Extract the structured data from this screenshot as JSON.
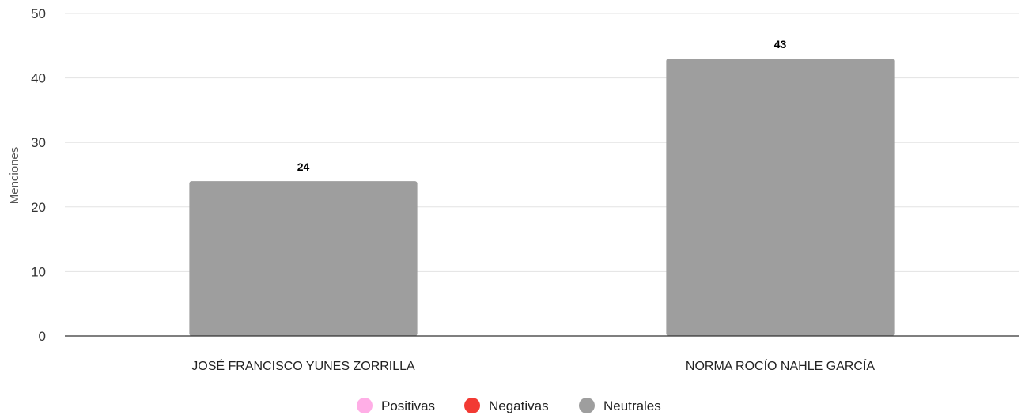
{
  "chart_data": {
    "type": "bar",
    "categories": [
      "JOSÉ FRANCISCO YUNES ZORRILLA",
      "NORMA ROCÍO NAHLE GARCÍA"
    ],
    "series": [
      {
        "name": "Positivas",
        "color": "#ffaee6",
        "values": [
          0,
          0
        ]
      },
      {
        "name": "Negativas",
        "color": "#f23a33",
        "values": [
          0,
          0
        ]
      },
      {
        "name": "Neutrales",
        "color": "#9e9e9e",
        "values": [
          24,
          43
        ]
      }
    ],
    "data_labels": [
      "24",
      "43"
    ],
    "title": "",
    "xlabel": "",
    "ylabel": "Menciones",
    "ylim": [
      0,
      50
    ],
    "yticks": [
      "0",
      "10",
      "20",
      "30",
      "40",
      "50"
    ],
    "grid": true,
    "legend_position": "bottom-center"
  }
}
